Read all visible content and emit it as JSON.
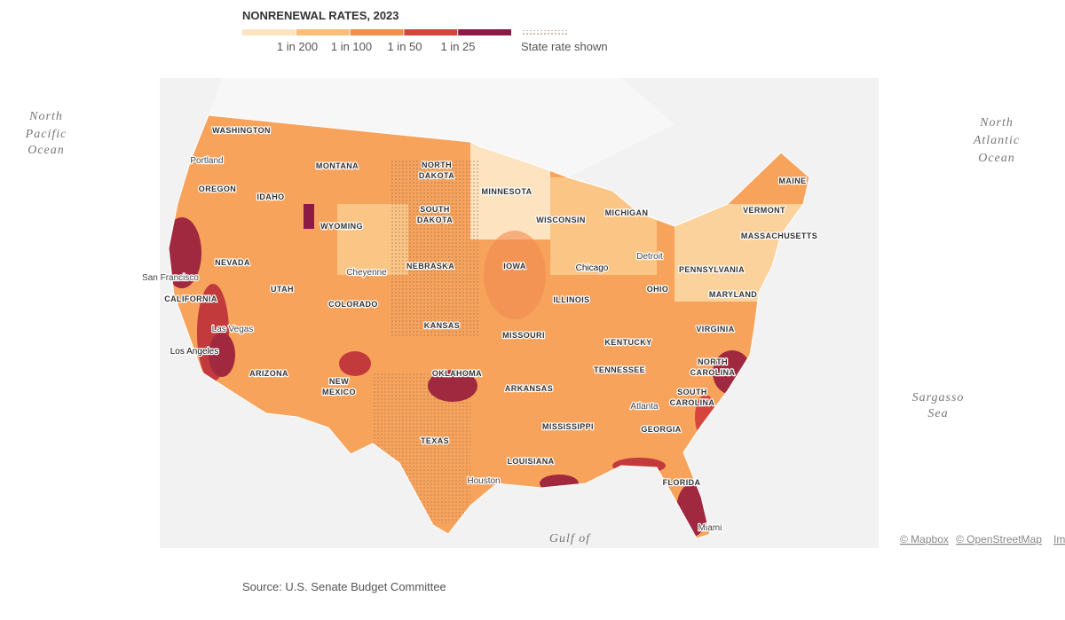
{
  "legend": {
    "title": "NONRENEWAL RATES, 2023",
    "labels": [
      "1 in 200",
      "1 in 100",
      "1 in 50",
      "1 in 25"
    ],
    "colors": [
      "#fde3c0",
      "#fbbd78",
      "#f58d4b",
      "#d6453b",
      "#8d1a45"
    ],
    "state_rate": "State rate shown"
  },
  "water": [
    [
      "North",
      "Pacific",
      "Ocean"
    ],
    [
      "North",
      "Atlantic",
      "Ocean"
    ],
    [
      "Sargasso",
      "Sea"
    ],
    [
      "Gulf of"
    ]
  ],
  "states": [
    "WASHINGTON",
    "OREGON",
    "IDAHO",
    "MONTANA",
    "WYOMING",
    [
      "NORTH",
      "DAKOTA"
    ],
    [
      "SOUTH",
      "DAKOTA"
    ],
    "MINNESOTA",
    "WISCONSIN",
    "MICHIGAN",
    "NEVADA",
    "UTAH",
    "COLORADO",
    "NEBRASKA",
    "IOWA",
    "ILLINOIS",
    "CALIFORNIA",
    "KANSAS",
    "MISSOURI",
    "KENTUCKY",
    "OHIO",
    "PENNSYLVANIA",
    "MAINE",
    "VERMONT",
    "MASSACHUSETTS",
    "MARYLAND",
    "VIRGINIA",
    [
      "NORTH",
      "CAROLINA"
    ],
    "TENNESSEE",
    "ARIZONA",
    [
      "NEW",
      "MEXICO"
    ],
    "OKLAHOMA",
    "ARKANSAS",
    [
      "SOUTH",
      "CAROLINA"
    ],
    "MISSISSIPPI",
    "GEORGIA",
    "TEXAS",
    "LOUISIANA",
    "FLORIDA"
  ],
  "cities": [
    "Portland",
    "San Francisco",
    "Las Vegas",
    "Los Angeles",
    "Cheyenne",
    "Chicago",
    "Detroit",
    "Atlanta",
    "Houston",
    "Miami"
  ],
  "attribution": [
    "© Mapbox",
    "© OpenStreetMap",
    "Im"
  ],
  "source": "Source: U.S. Senate Budget Committee"
}
